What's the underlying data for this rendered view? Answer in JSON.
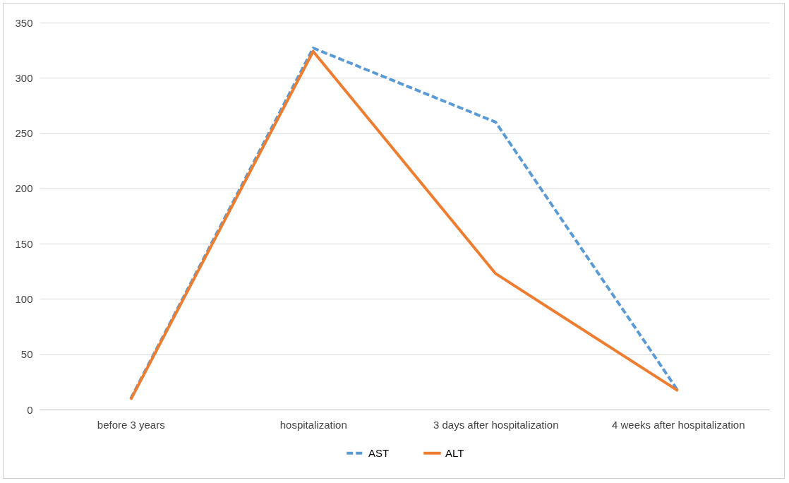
{
  "chart_data": {
    "type": "line",
    "categories": [
      "before 3 years",
      "hospitalization",
      "3 days after hospitalization",
      "4 weeks after hospitalization"
    ],
    "series": [
      {
        "name": "AST",
        "color": "#5b9bd5",
        "line_style": "dashed",
        "values": [
          10,
          327,
          260,
          17
        ]
      },
      {
        "name": "ALT",
        "color": "#ed7d31",
        "line_style": "solid",
        "values": [
          9,
          324,
          123,
          17
        ]
      }
    ],
    "ylim": [
      0,
      350
    ],
    "yticks": [
      0,
      50,
      100,
      150,
      200,
      250,
      300,
      350
    ],
    "grid": "y",
    "legend": "bottom",
    "marker": "none"
  }
}
